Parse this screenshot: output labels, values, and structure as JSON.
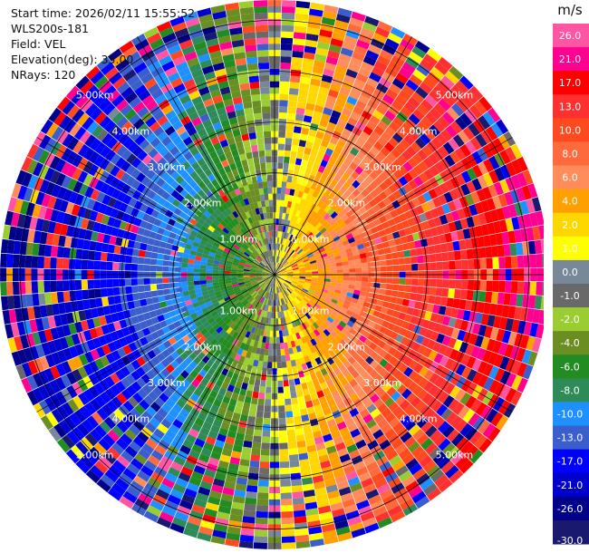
{
  "header": {
    "start_time": "Start time: 2026/02/11 15:55:52",
    "instrument": "WLS200s-181",
    "field": "Field: VEL",
    "elevation": "Elevation(deg): 35.00",
    "nrays": "NRays: 120"
  },
  "chart_data": {
    "type": "heatmap",
    "projection": "polar-ppi",
    "field": "VEL",
    "units": "m/s",
    "n_rays": 120,
    "max_range_km": 5.4,
    "range_rings_km": [
      1,
      2,
      3,
      4,
      5
    ],
    "ring_labels": [
      "1.00km",
      "2.00km",
      "3.00km",
      "4.00km",
      "5.00km"
    ],
    "colorbar": {
      "title": "m/s",
      "tick_labels": [
        "26.0",
        "21.0",
        "17.0",
        "13.0",
        "10.0",
        "8.0",
        "6.0",
        "4.0",
        "2.0",
        "1.0",
        "0.0",
        "-1.0",
        "-2.0",
        "-4.0",
        "-6.0",
        "-8.0",
        "-10.0",
        "-13.0",
        "-17.0",
        "-21.0",
        "-26.0",
        "-30.0"
      ],
      "colors": [
        "#ff55a3",
        "#ff0090",
        "#ff0000",
        "#ff3030",
        "#ff4a20",
        "#ff6a3d",
        "#ff8c5a",
        "#ffa000",
        "#ffd700",
        "#ffff00",
        "#778899",
        "#696969",
        "#9acd32",
        "#6b8e23",
        "#228b22",
        "#2e8b57",
        "#1e90ff",
        "#3a5fcd",
        "#0000ff",
        "#0000cd",
        "#00008b",
        "#191970"
      ]
    }
  }
}
